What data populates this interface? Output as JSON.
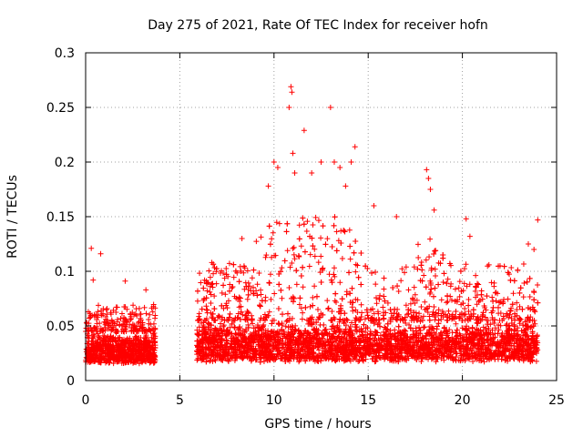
{
  "chart_data": {
    "type": "scatter",
    "title": "Day 275 of 2021, Rate Of TEC Index for receiver hofn",
    "xlabel": "GPS time / hours",
    "ylabel": "ROTI / TECUs",
    "xlim": [
      0,
      25
    ],
    "ylim": [
      0,
      0.3
    ],
    "xticks": [
      "0",
      "5",
      "10",
      "15",
      "20",
      "25"
    ],
    "yticks": [
      "0",
      "0.05",
      "0.1",
      "0.15",
      "0.2",
      "0.25",
      "0.3"
    ],
    "grid": true,
    "marker": "plus",
    "color": "#ff0000",
    "series": [
      {
        "segments": [
          {
            "x_start": 0.0,
            "x_end": 3.7,
            "base": [
              0.01,
              0.045
            ],
            "spread_max": 0.09
          },
          {
            "x_start": 5.9,
            "x_end": 24.0,
            "base": [
              0.01,
              0.055
            ],
            "spread_max": 0.15
          }
        ],
        "highlights": [
          {
            "x": 0.3,
            "y": 0.121
          },
          {
            "x": 0.8,
            "y": 0.116
          },
          {
            "x": 0.4,
            "y": 0.092
          },
          {
            "x": 2.1,
            "y": 0.091
          },
          {
            "x": 3.2,
            "y": 0.083
          },
          {
            "x": 6.7,
            "y": 0.108
          },
          {
            "x": 8.3,
            "y": 0.13
          },
          {
            "x": 9.7,
            "y": 0.178
          },
          {
            "x": 10.0,
            "y": 0.2
          },
          {
            "x": 10.2,
            "y": 0.195
          },
          {
            "x": 10.8,
            "y": 0.25
          },
          {
            "x": 10.9,
            "y": 0.269
          },
          {
            "x": 10.95,
            "y": 0.264
          },
          {
            "x": 11.0,
            "y": 0.208
          },
          {
            "x": 11.1,
            "y": 0.19
          },
          {
            "x": 11.6,
            "y": 0.229
          },
          {
            "x": 12.0,
            "y": 0.19
          },
          {
            "x": 12.5,
            "y": 0.2
          },
          {
            "x": 13.0,
            "y": 0.25
          },
          {
            "x": 13.2,
            "y": 0.2
          },
          {
            "x": 13.5,
            "y": 0.195
          },
          {
            "x": 13.8,
            "y": 0.178
          },
          {
            "x": 14.3,
            "y": 0.214
          },
          {
            "x": 14.1,
            "y": 0.2
          },
          {
            "x": 15.3,
            "y": 0.16
          },
          {
            "x": 16.5,
            "y": 0.15
          },
          {
            "x": 18.1,
            "y": 0.193
          },
          {
            "x": 18.2,
            "y": 0.185
          },
          {
            "x": 18.3,
            "y": 0.175
          },
          {
            "x": 18.5,
            "y": 0.156
          },
          {
            "x": 20.2,
            "y": 0.148
          },
          {
            "x": 20.4,
            "y": 0.132
          },
          {
            "x": 22.0,
            "y": 0.105
          },
          {
            "x": 23.5,
            "y": 0.125
          },
          {
            "x": 23.8,
            "y": 0.12
          },
          {
            "x": 24.0,
            "y": 0.147
          }
        ]
      }
    ]
  }
}
